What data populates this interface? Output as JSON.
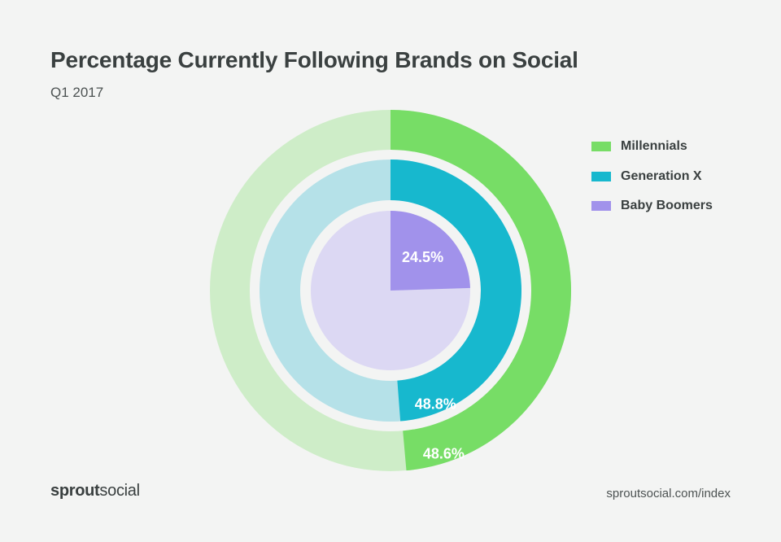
{
  "title": "Percentage Currently Following Brands on Social",
  "subtitle": "Q1 2017",
  "brand": {
    "bold": "sprout",
    "light": "social"
  },
  "footer_url": "sproutsocial.com/index",
  "chart_data": {
    "type": "pie",
    "title": "Percentage Currently Following Brands on Social",
    "subtitle": "Q1 2017",
    "legend_position": "right",
    "series": [
      {
        "name": "Millennials",
        "value": 48.6,
        "label": "48.6%",
        "color": "#77dd66",
        "track_color": "#ceedc8"
      },
      {
        "name": "Generation X",
        "value": 48.8,
        "label": "48.8%",
        "color": "#17b8ce",
        "track_color": "#b5e1e8"
      },
      {
        "name": "Baby Boomers",
        "value": 24.5,
        "label": "24.5%",
        "color": "#a192eb",
        "track_color": "#dcd8f3"
      }
    ]
  }
}
